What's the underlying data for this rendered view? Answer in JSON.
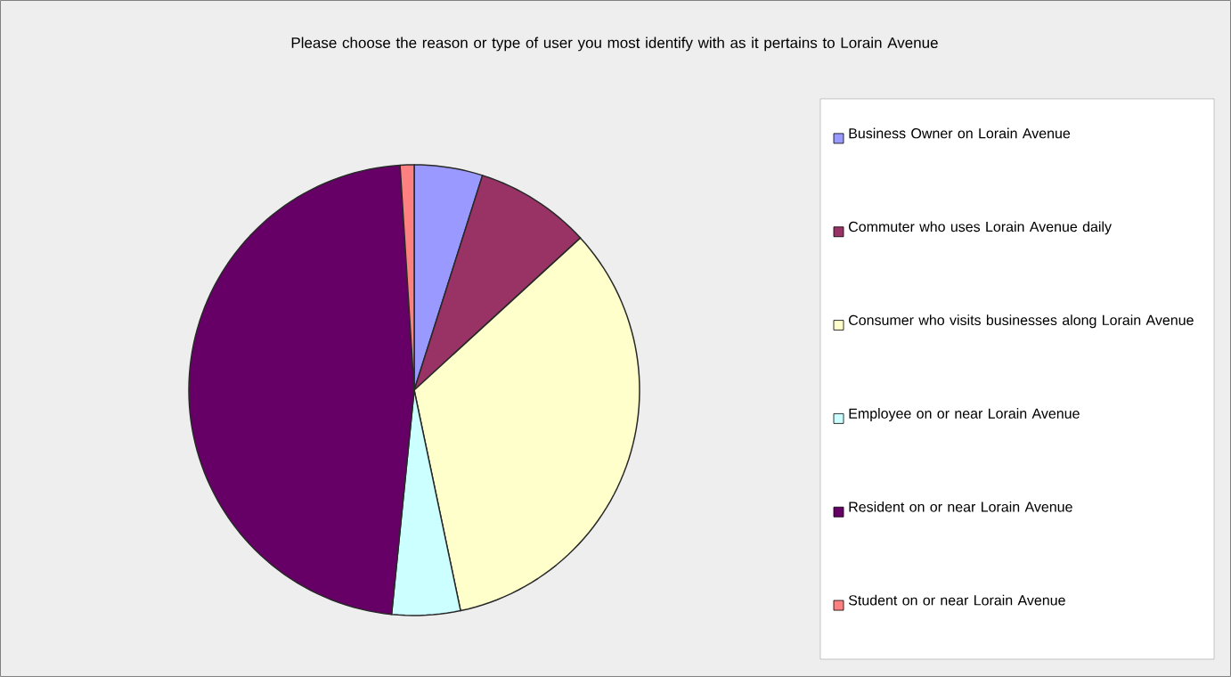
{
  "chart_data": {
    "type": "pie",
    "title": "Please choose the reason or type of user you most identify with as it pertains to Lorain Avenue",
    "categories": [
      "Business Owner on Lorain Avenue",
      "Commuter who uses Lorain Avenue daily",
      "Consumer who visits businesses along Lorain Avenue",
      "Employee on or near Lorain Avenue",
      "Resident on or near Lorain Avenue",
      "Student on or near Lorain Avenue"
    ],
    "values": [
      4.9,
      8.3,
      33.5,
      4.9,
      47.4,
      1.0
    ],
    "colors": [
      "#9999ff",
      "#993366",
      "#ffffcc",
      "#ccffff",
      "#660066",
      "#ff8080"
    ],
    "legend": "right"
  }
}
